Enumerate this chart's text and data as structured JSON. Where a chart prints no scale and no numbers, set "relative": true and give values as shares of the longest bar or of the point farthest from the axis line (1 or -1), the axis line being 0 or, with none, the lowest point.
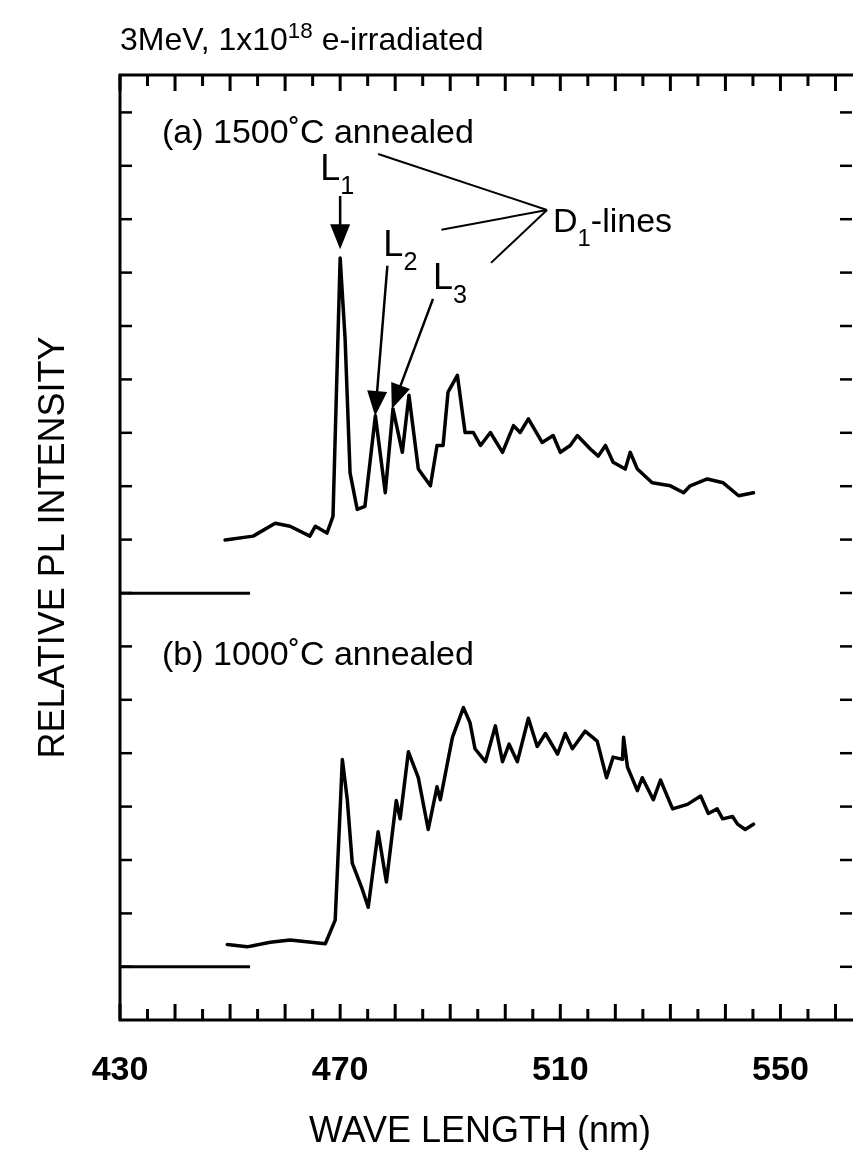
{
  "chart_data": {
    "type": "line",
    "title": "3MeV, 1x10$^{18}$ e-irradiated",
    "xlabel": "WAVE LENGTH (nm)",
    "ylabel": "RELATIVE PL INTENSITY",
    "relative": true,
    "xlim": [
      430,
      563
    ],
    "xticks": [
      430,
      {
        "value": 435,
        "label": null
      },
      {
        "value": 440,
        "label": null
      },
      {
        "value": 445,
        "label": null
      },
      {
        "value": 450,
        "label": null
      },
      {
        "value": 455,
        "label": null
      },
      {
        "value": 460,
        "label": null
      },
      {
        "value": 465,
        "label": null
      },
      470,
      {
        "value": 475,
        "label": null
      },
      {
        "value": 480,
        "label": null
      },
      {
        "value": 485,
        "label": null
      },
      {
        "value": 490,
        "label": null
      },
      {
        "value": 495,
        "label": null
      },
      {
        "value": 500,
        "label": null
      },
      {
        "value": 505,
        "label": null
      },
      510,
      {
        "value": 515,
        "label": null
      },
      {
        "value": 520,
        "label": null
      },
      {
        "value": 525,
        "label": null
      },
      {
        "value": 530,
        "label": null
      },
      {
        "value": 535,
        "label": null
      },
      {
        "value": 540,
        "label": null
      },
      {
        "value": 545,
        "label": null
      },
      550,
      {
        "value": 555,
        "label": null
      },
      {
        "value": 560,
        "label": null
      }
    ],
    "ref_lines": [
      {
        "axis": "y",
        "value": 0.56,
        "color": "#000000"
      },
      {
        "axis": "y",
        "value": 0.07,
        "color": "#000000"
      }
    ],
    "series": [
      {
        "color": "#000000",
        "x": [
          449.1,
          454.2,
          458.2,
          460.9,
          464.5,
          465.5,
          467.6,
          468.7,
          470.0,
          470.9,
          471.8,
          473.1,
          474.5,
          476.4,
          478.2,
          479.6,
          481.3,
          482.5,
          484.2,
          486.4,
          487.6,
          488.7,
          489.6,
          491.3,
          492.7,
          494.2,
          495.5,
          497.3,
          499.5,
          501.5,
          502.7,
          504.2,
          506.7,
          508.7,
          510.0,
          511.8,
          513.1,
          515.5,
          516.9,
          518.2,
          519.6,
          521.8,
          522.7,
          524.0,
          526.7,
          530.0,
          532.4,
          533.6,
          536.7,
          539.6,
          542.4,
          545.1
        ],
        "values": [
          0.63,
          0.635,
          0.652,
          0.648,
          0.635,
          0.648,
          0.639,
          0.661,
          1.0,
          0.894,
          0.718,
          0.67,
          0.674,
          0.793,
          0.692,
          0.802,
          0.745,
          0.82,
          0.723,
          0.701,
          0.754,
          0.754,
          0.824,
          0.846,
          0.771,
          0.771,
          0.754,
          0.771,
          0.745,
          0.78,
          0.771,
          0.789,
          0.758,
          0.767,
          0.745,
          0.754,
          0.767,
          0.749,
          0.74,
          0.754,
          0.732,
          0.723,
          0.745,
          0.723,
          0.705,
          0.701,
          0.692,
          0.701,
          0.71,
          0.705,
          0.688,
          0.692
        ]
      },
      {
        "color": "#000000",
        "x": [
          449.5,
          453.1,
          457.3,
          460.9,
          467.3,
          469.1,
          470.4,
          471.3,
          472.2,
          474.0,
          475.1,
          476.9,
          478.4,
          480.2,
          480.9,
          482.4,
          484.2,
          486.0,
          487.6,
          488.2,
          490.4,
          492.4,
          493.6,
          494.5,
          496.4,
          498.2,
          499.5,
          500.7,
          502.2,
          504.2,
          505.8,
          507.3,
          509.5,
          510.9,
          512.2,
          514.5,
          516.7,
          518.4,
          519.6,
          521.3,
          521.5,
          522.2,
          524.0,
          524.9,
          526.9,
          528.2,
          530.4,
          533.1,
          535.5,
          536.9,
          538.5,
          539.5,
          541.3,
          542.2,
          543.6,
          545.1
        ],
        "values": [
          0.099,
          0.096,
          0.102,
          0.105,
          0.1,
          0.131,
          0.342,
          0.289,
          0.206,
          0.172,
          0.148,
          0.247,
          0.181,
          0.288,
          0.264,
          0.352,
          0.318,
          0.25,
          0.306,
          0.289,
          0.371,
          0.41,
          0.39,
          0.356,
          0.339,
          0.386,
          0.339,
          0.362,
          0.339,
          0.396,
          0.359,
          0.376,
          0.349,
          0.376,
          0.356,
          0.379,
          0.366,
          0.318,
          0.345,
          0.342,
          0.371,
          0.332,
          0.301,
          0.318,
          0.289,
          0.315,
          0.277,
          0.283,
          0.294,
          0.271,
          0.277,
          0.264,
          0.267,
          0.257,
          0.25,
          0.257
        ]
      }
    ],
    "annotations": [
      "(a) 1500˚C annealed",
      "(b) 1000˚C annealed",
      {
        "text": "L$_{1}$",
        "x": 470.0,
        "y": 1.0
      },
      {
        "text": "L$_{2}$",
        "x": 476.4,
        "y": 0.793
      },
      {
        "text": "L$_{3}$",
        "x": 479.6,
        "y": 0.802
      },
      "D$_{1}$-lines"
    ]
  }
}
